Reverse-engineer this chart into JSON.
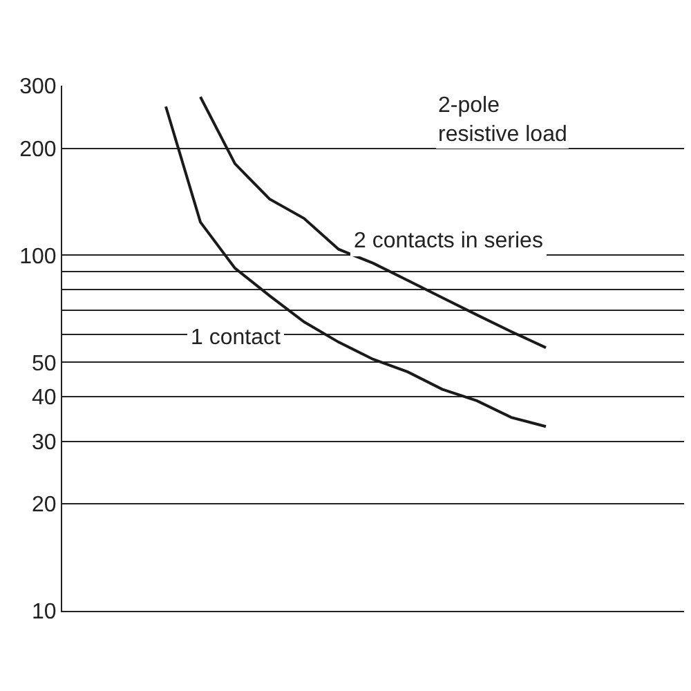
{
  "chart_data": {
    "type": "line",
    "log": "y",
    "grid": "y",
    "tick_labels": "y",
    "legend": false,
    "marker": "none",
    "line_style": "solid",
    "categories": [
      null,
      null,
      null,
      null,
      null,
      null,
      null,
      null,
      null,
      null,
      null,
      null,
      null,
      null,
      null,
      null,
      null,
      null,
      null
    ],
    "ylim": [
      10,
      300
    ],
    "yticks": [
      10,
      20,
      30,
      40,
      50,
      {
        "value": 60,
        "label": null
      },
      {
        "value": 70,
        "label": null
      },
      {
        "value": 80,
        "label": null
      },
      {
        "value": 90,
        "label": null
      },
      100,
      200,
      300
    ],
    "series": [
      {
        "name": "2 contacts in series",
        "color": "#1a1a1a",
        "values": [
          null,
          null,
          null,
          null,
          279,
          181,
          144,
          127,
          104,
          95,
          85,
          76,
          68,
          61,
          55,
          null,
          null,
          null,
          null
        ]
      },
      {
        "name": "1 contact",
        "color": "#1a1a1a",
        "values": [
          null,
          null,
          null,
          262,
          124,
          92,
          77,
          65,
          57,
          51,
          47,
          42,
          39,
          35,
          33,
          null,
          null,
          null,
          null
        ]
      }
    ],
    "annotations": [
      "2-pole\nresistive load"
    ]
  }
}
